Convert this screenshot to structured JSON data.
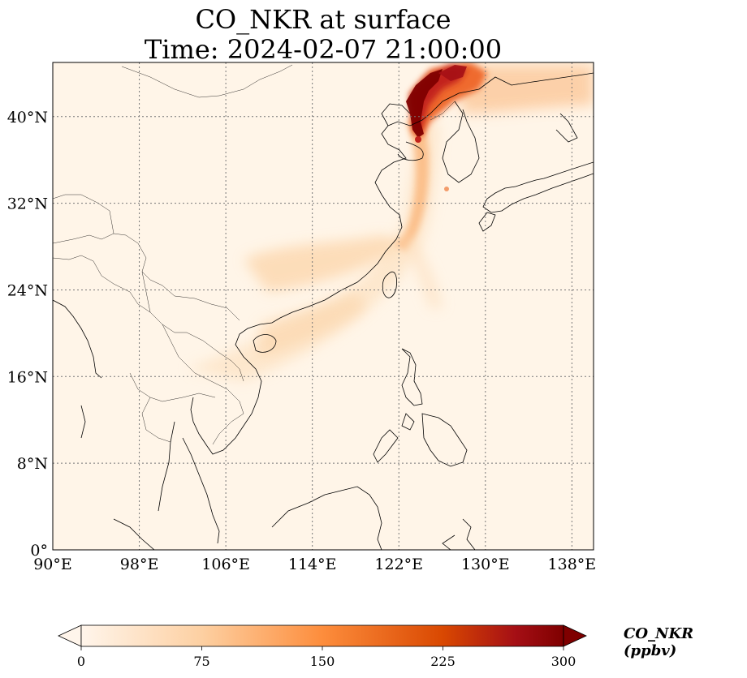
{
  "title": {
    "line1": "CO_NKR at surface",
    "line2": "Time: 2024-02-07 21:00:00"
  },
  "map": {
    "lon_range": [
      90,
      140
    ],
    "lat_range": [
      0,
      45
    ],
    "lon_ticks": [
      "90°E",
      "98°E",
      "106°E",
      "114°E",
      "122°E",
      "130°E",
      "138°E"
    ],
    "lon_tick_values": [
      90,
      98,
      106,
      114,
      122,
      130,
      138
    ],
    "lat_ticks": [
      "0°",
      "8°N",
      "16°N",
      "24°N",
      "32°N",
      "40°N"
    ],
    "lat_tick_values": [
      0,
      8,
      16,
      24,
      32,
      40
    ],
    "gridlines": true,
    "background_color": "#fff5e8"
  },
  "colorbar": {
    "label": "CO_NKR (ppbv)",
    "ticks": [
      "0",
      "75",
      "150",
      "225",
      "300"
    ],
    "tick_values": [
      0,
      75,
      150,
      225,
      300
    ],
    "min": 0,
    "max": 300,
    "extend": "both",
    "colormap": [
      "#fff5eb",
      "#fdd0a2",
      "#fd8d3c",
      "#d94801",
      "#a50f15",
      "#7f0000"
    ]
  }
}
